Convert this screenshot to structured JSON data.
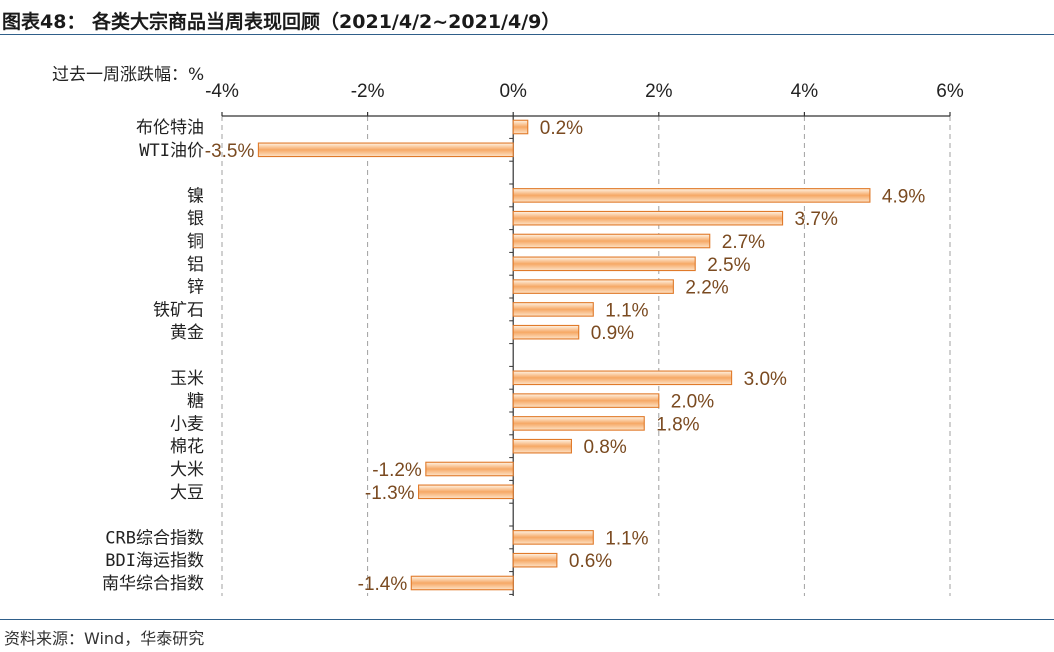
{
  "title": "图表48： 各类大宗商品当周表现回顾（2021/4/2~2021/4/9）",
  "source": "资料来源：Wind，华泰研究",
  "chart_data": {
    "type": "bar",
    "orientation": "horizontal",
    "unit_label": "过去一周涨跌幅：%",
    "xlim": [
      -4,
      6
    ],
    "x_ticks": [
      -4,
      -2,
      0,
      2,
      4,
      6
    ],
    "x_tick_labels": [
      "-4%",
      "-2%",
      "0%",
      "2%",
      "4%",
      "6%"
    ],
    "grid": "vertical dashed",
    "groups": [
      {
        "categories": [
          "布伦特油",
          "WTI油价"
        ],
        "values": [
          0.2,
          -3.5
        ],
        "labels": [
          "0.2%",
          "-3.5%"
        ]
      },
      {
        "categories": [
          "镍",
          "银",
          "铜",
          "铝",
          "锌",
          "铁矿石",
          "黄金"
        ],
        "values": [
          4.9,
          3.7,
          2.7,
          2.5,
          2.2,
          1.1,
          0.9
        ],
        "labels": [
          "4.9%",
          "3.7%",
          "2.7%",
          "2.5%",
          "2.2%",
          "1.1%",
          "0.9%"
        ]
      },
      {
        "categories": [
          "玉米",
          "糖",
          "小麦",
          "棉花",
          "大米",
          "大豆"
        ],
        "values": [
          3.0,
          2.0,
          1.8,
          0.8,
          -1.2,
          -1.3
        ],
        "labels": [
          "3.0%",
          "2.0%",
          "1.8%",
          "0.8%",
          "-1.2%",
          "-1.3%"
        ]
      },
      {
        "categories": [
          "CRB综合指数",
          "BDI海运指数",
          "南华综合指数"
        ],
        "values": [
          1.1,
          0.6,
          -1.4
        ],
        "labels": [
          "1.1%",
          "0.6%",
          "-1.4%"
        ]
      }
    ]
  },
  "colors": {
    "bar_edge": "#e07a2a",
    "bar_dark": "#f3a05c",
    "bar_light": "#fff2e2",
    "grid": "#a0a0a0",
    "axis": "#333333"
  }
}
